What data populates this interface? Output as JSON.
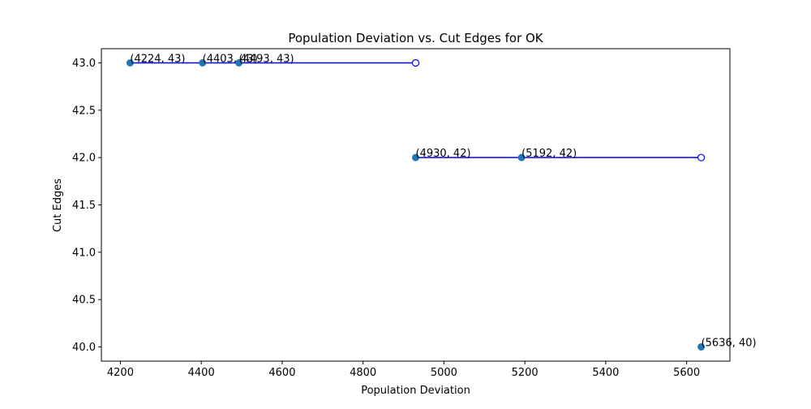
{
  "chart_data": {
    "type": "scatter",
    "title": "Population Deviation vs. Cut Edges for OK",
    "xlabel": "Population Deviation",
    "ylabel": "Cut Edges",
    "xlim": [
      4153,
      5707
    ],
    "ylim": [
      39.85,
      43.15
    ],
    "x_ticks": [
      4200,
      4400,
      4600,
      4800,
      5000,
      5200,
      5400,
      5600
    ],
    "x_tick_labels": [
      "4200",
      "4400",
      "4600",
      "4800",
      "5000",
      "5200",
      "5400",
      "5600"
    ],
    "y_ticks": [
      40.0,
      40.5,
      41.0,
      41.5,
      42.0,
      42.5,
      43.0
    ],
    "y_tick_labels": [
      "40.0",
      "40.5",
      "41.0",
      "41.5",
      "42.0",
      "42.5",
      "43.0"
    ],
    "grid": false,
    "points": [
      {
        "x": 4224,
        "y": 43,
        "label": "(4224, 43)"
      },
      {
        "x": 4403,
        "y": 43,
        "label": "(4403, 43)"
      },
      {
        "x": 4493,
        "y": 43,
        "label": "(4493, 43)"
      },
      {
        "x": 4930,
        "y": 42,
        "label": "(4930, 42)"
      },
      {
        "x": 5192,
        "y": 42,
        "label": "(5192, 42)"
      },
      {
        "x": 5636,
        "y": 40,
        "label": "(5636, 40)"
      }
    ],
    "segments": [
      {
        "x0": 4224,
        "x1": 4930,
        "y": 43
      },
      {
        "x0": 4930,
        "x1": 5636,
        "y": 42
      }
    ],
    "colors": {
      "point": "#1f77b4",
      "segment": "#0000ff",
      "open_marker": "#0000ff"
    }
  }
}
